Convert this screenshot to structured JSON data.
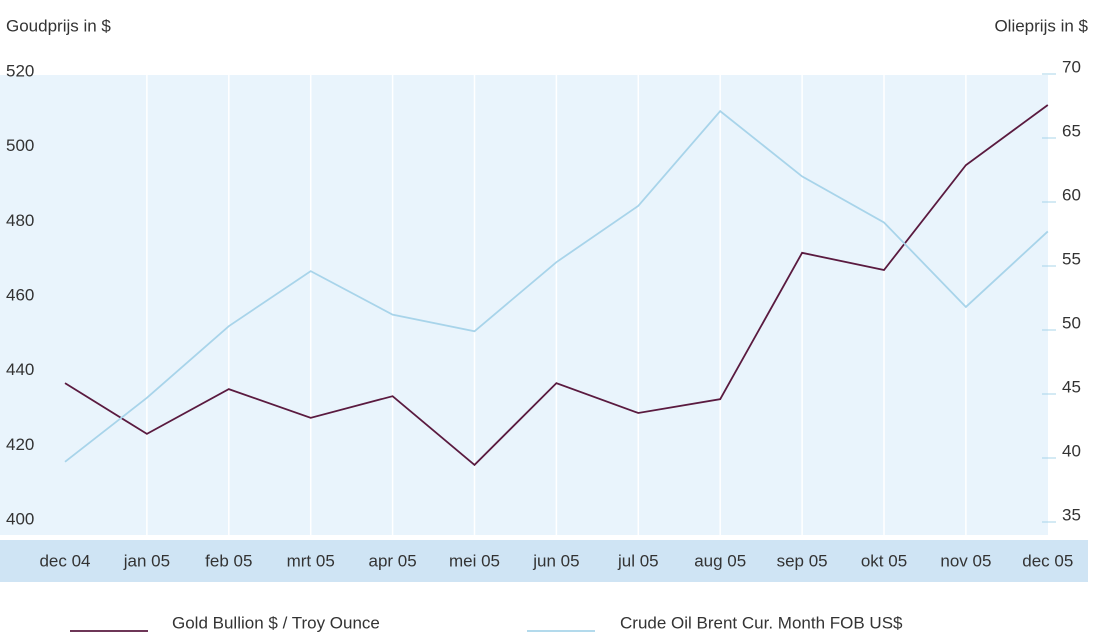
{
  "chart_data": {
    "type": "line",
    "ylabel": "Goudprijs in $",
    "y2label": "Olieprijs in $",
    "categories": [
      "dec 04",
      "jan 05",
      "feb 05",
      "mrt 05",
      "apr 05",
      "mei 05",
      "jun 05",
      "jul 05",
      "aug 05",
      "sep 05",
      "okt 05",
      "nov 05",
      "dec 05"
    ],
    "series": [
      {
        "name": "Gold Bullion $ / Troy Ounce",
        "color": "#5a1a3f",
        "values": [
          437.2,
          423.6,
          435.6,
          427.9,
          433.7,
          415.3,
          437.2,
          429.2,
          432.9,
          472.1,
          467.5,
          495.6,
          511.7
        ]
      },
      {
        "name": "Crude Oil Brent Cur. Month FOB US$",
        "color": "#a8d4ea",
        "axis": "y2",
        "values": [
          39.7,
          44.7,
          50.3,
          54.6,
          51.2,
          49.9,
          55.3,
          59.7,
          67.1,
          62.0,
          58.4,
          51.8,
          57.7
        ]
      }
    ],
    "ylim": [
      400,
      520
    ],
    "yticks": [
      400,
      420,
      440,
      460,
      480,
      500,
      520
    ],
    "y2lim": [
      35,
      70
    ],
    "y2ticks": [
      35,
      40,
      45,
      50,
      55,
      60,
      65,
      70
    ],
    "grid": true
  }
}
